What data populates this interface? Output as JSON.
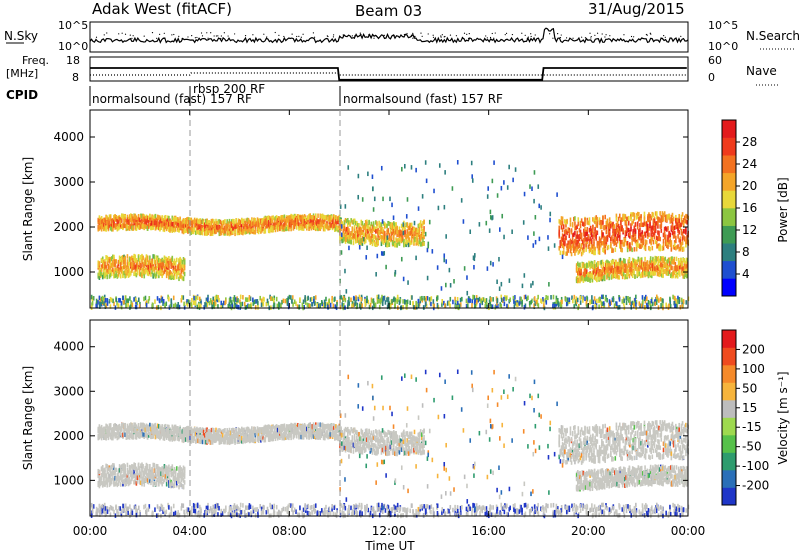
{
  "header": {
    "station": "Adak West (fitACF)",
    "beam": "Beam 03",
    "date": "31/Aug/2015"
  },
  "noise_panel": {
    "left_label": "N.Sky",
    "left_ticks": [
      "10^5",
      "10^0"
    ],
    "right_ticks": [
      "10^5",
      "10^0"
    ],
    "right_label": "N.Search"
  },
  "freq_panel": {
    "left_label_1": "Freq.",
    "left_label_2": "[MHz]",
    "left_ticks": [
      "18",
      "8"
    ],
    "right_ticks": [
      "60",
      "0"
    ],
    "right_label": "Nave"
  },
  "cpid": {
    "label": "CPID",
    "segments": [
      {
        "name": "normalsound (fast) 157 RF",
        "start_h": 0,
        "end_h": 4
      },
      {
        "name": "rbsp 200 RF",
        "start_h": 4,
        "end_h": 10
      },
      {
        "name": "normalsound (fast) 157 RF",
        "start_h": 10,
        "end_h": 24
      }
    ],
    "overlay_text": "normalsound (fast) 157 RF"
  },
  "chart_data": [
    {
      "type": "heatmap",
      "title": "",
      "xlabel": "",
      "ylabel": "Slant Range [km]",
      "xlim_hours": [
        0,
        24
      ],
      "ylim": [
        200,
        4600
      ],
      "y_ticks": [
        "1000",
        "2000",
        "3000",
        "4000"
      ],
      "colorbar": {
        "label": "Power [dB]",
        "ticks": [
          "4",
          "8",
          "12",
          "16",
          "20",
          "24",
          "28"
        ],
        "colors": [
          "#0000ff",
          "#1f4fd0",
          "#2d7f7f",
          "#3e9b54",
          "#8cc641",
          "#e8d83a",
          "#f4a529",
          "#f37220",
          "#ef3a1c",
          "#e31a1c"
        ]
      },
      "echo_bands": [
        {
          "name": "upper band",
          "start_h": 0.3,
          "end_h": 10.0,
          "range_km": [
            1950,
            2250
          ],
          "mean_power_db": 20
        },
        {
          "name": "lower band",
          "start_h": 0.3,
          "end_h": 3.8,
          "range_km": [
            900,
            1350
          ],
          "mean_power_db": 18
        },
        {
          "name": "post-transition band",
          "start_h": 10.0,
          "end_h": 13.4,
          "range_km": [
            1700,
            2200
          ],
          "mean_power_db": 18
        },
        {
          "name": "evening upper band",
          "start_h": 18.8,
          "end_h": 24.0,
          "range_km": [
            1500,
            2300
          ],
          "mean_power_db": 22
        },
        {
          "name": "evening lower band",
          "start_h": 19.5,
          "end_h": 24.0,
          "range_km": [
            900,
            1300
          ],
          "mean_power_db": 18
        }
      ],
      "markers_hours": [
        4,
        10
      ]
    },
    {
      "type": "heatmap",
      "title": "",
      "xlabel": "Time UT",
      "ylabel": "Slant Range [km]",
      "xlim_hours": [
        0,
        24
      ],
      "ylim": [
        200,
        4600
      ],
      "x_ticks": [
        "00:00",
        "04:00",
        "08:00",
        "12:00",
        "16:00",
        "20:00",
        "00:00"
      ],
      "y_ticks": [
        "1000",
        "2000",
        "3000",
        "4000"
      ],
      "colorbar": {
        "label": "Velocity [m s⁻¹]",
        "ticks": [
          "200",
          "100",
          "50",
          "15",
          "-15",
          "-50",
          "-100",
          "-200"
        ],
        "colors": [
          "#1f36c8",
          "#2a6fb8",
          "#2e9c6e",
          "#56c14a",
          "#9ed94f",
          "#bdbdbd",
          "#f6b43c",
          "#f58a2a",
          "#ef4b1f",
          "#e31a1c"
        ]
      },
      "markers_hours": [
        4,
        10
      ]
    }
  ]
}
